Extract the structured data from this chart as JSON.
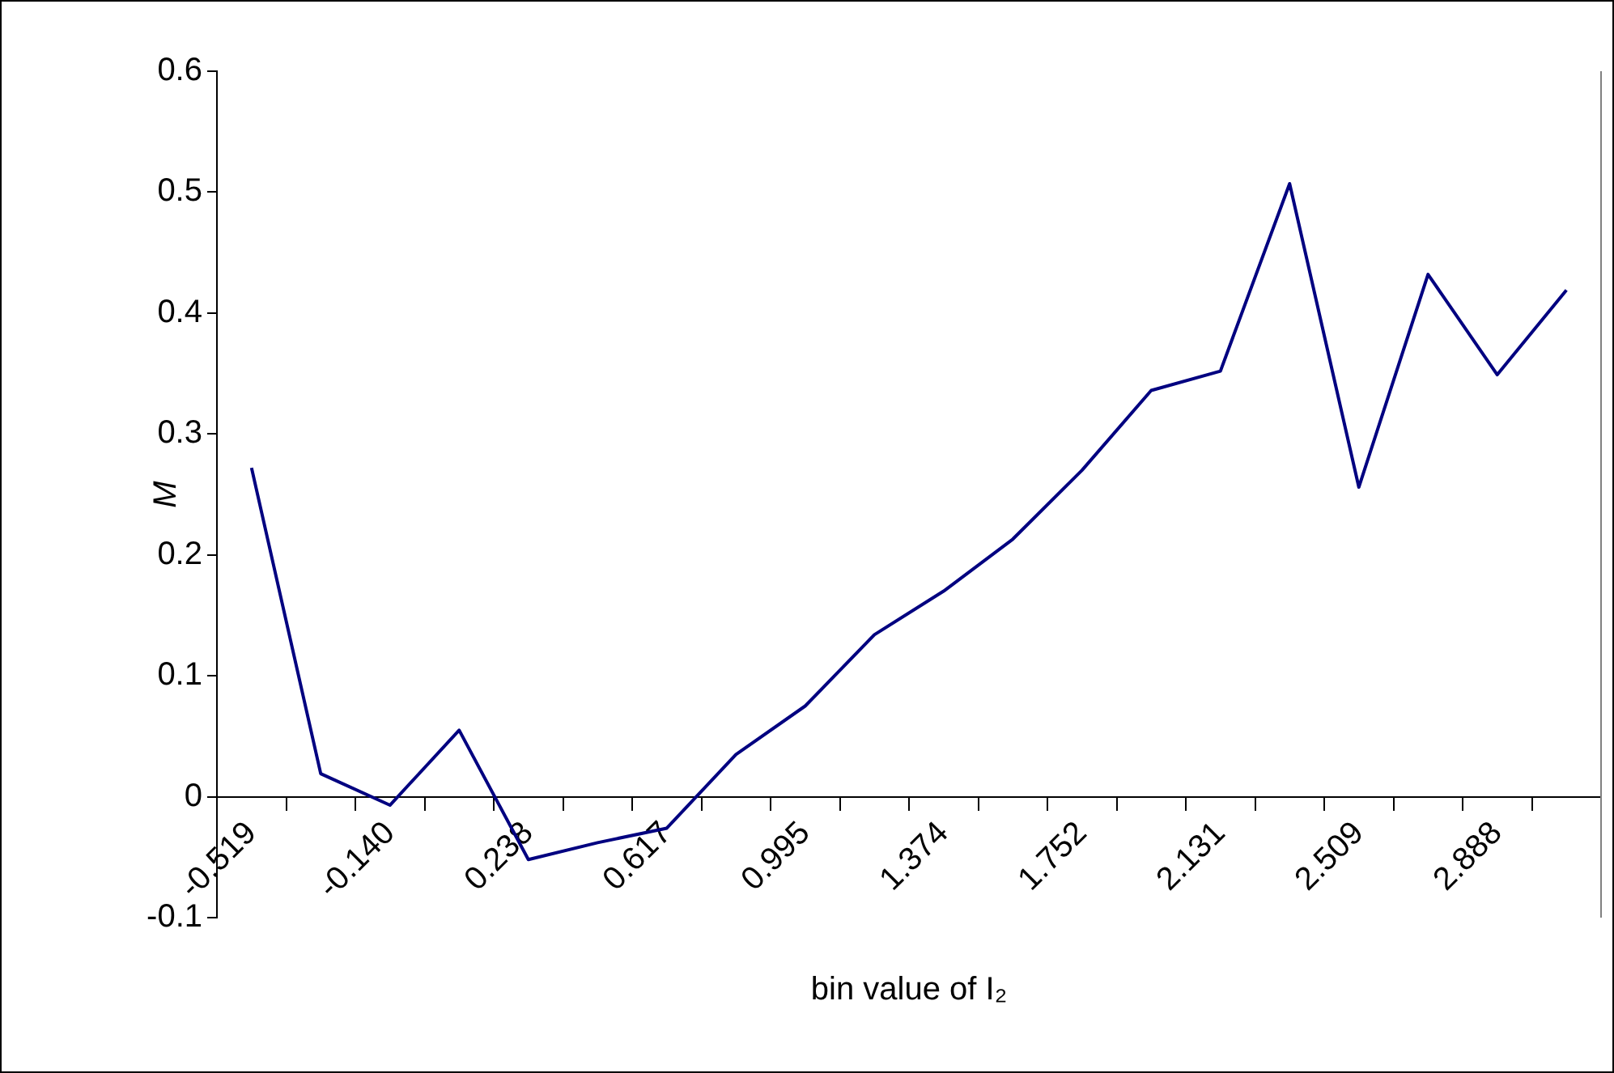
{
  "chart_data": {
    "type": "line",
    "xlabel": "bin value of I₂",
    "ylabel": "M",
    "categories": [
      "-0.519",
      null,
      "-0.140",
      null,
      "0.238",
      null,
      "0.617",
      null,
      "0.995",
      null,
      "1.374",
      null,
      "1.752",
      null,
      "2.131",
      null,
      "2.509",
      null,
      "2.888",
      null
    ],
    "series": [
      {
        "color": "#000080",
        "values": [
          0.272,
          0.019,
          -0.007,
          0.055,
          -0.052,
          -0.038,
          -0.026,
          0.035,
          0.075,
          0.134,
          0.17,
          0.213,
          0.27,
          0.336,
          0.352,
          0.507,
          0.256,
          0.432,
          0.349,
          0.419
        ]
      }
    ],
    "ylim": [
      -0.1,
      0.6
    ],
    "yticks": [
      -0.1,
      0,
      0.1,
      0.2,
      0.3,
      0.4,
      0.5,
      0.6
    ],
    "grid": false,
    "legend": false,
    "marker": "none",
    "line_style": "solid"
  }
}
